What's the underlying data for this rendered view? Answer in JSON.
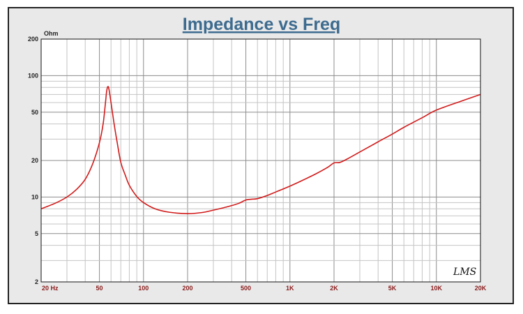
{
  "chart_data": {
    "type": "line",
    "title": "Impedance vs Freq",
    "ylabel": "Ohm",
    "xlabel": "",
    "x_scale": "log",
    "y_scale": "log",
    "xlim": [
      20,
      20000
    ],
    "ylim": [
      2,
      200
    ],
    "grid": true,
    "x_tick_labels": [
      {
        "value": 20,
        "label": "20 Hz"
      },
      {
        "value": 50,
        "label": "50"
      },
      {
        "value": 100,
        "label": "100"
      },
      {
        "value": 200,
        "label": "200"
      },
      {
        "value": 500,
        "label": "500"
      },
      {
        "value": 1000,
        "label": "1K"
      },
      {
        "value": 2000,
        "label": "2K"
      },
      {
        "value": 5000,
        "label": "5K"
      },
      {
        "value": 10000,
        "label": "10K"
      },
      {
        "value": 20000,
        "label": "20K"
      }
    ],
    "y_tick_labels": [
      {
        "value": 200,
        "label": "200"
      },
      {
        "value": 100,
        "label": "100"
      },
      {
        "value": 50,
        "label": "50"
      },
      {
        "value": 20,
        "label": "20"
      },
      {
        "value": 10,
        "label": "10"
      },
      {
        "value": 5,
        "label": "5"
      },
      {
        "value": 2,
        "label": "2"
      }
    ],
    "series": [
      {
        "color": "#d11a1a",
        "x": [
          20,
          25,
          30,
          35,
          40,
          45,
          50,
          53,
          55,
          56,
          57,
          58,
          60,
          63,
          66,
          70,
          75,
          80,
          90,
          100,
          120,
          150,
          200,
          250,
          300,
          350,
          400,
          450,
          500,
          550,
          600,
          700,
          800,
          1000,
          1200,
          1500,
          1800,
          2000,
          2200,
          2500,
          3000,
          4000,
          5000,
          6000,
          8000,
          10000,
          15000,
          20000
        ],
        "y": [
          8,
          8.9,
          10,
          11.6,
          14,
          18.8,
          28,
          40,
          60,
          74,
          81,
          78,
          60,
          40,
          28.5,
          19.3,
          15.2,
          12.5,
          10.1,
          9,
          8,
          7.5,
          7.3,
          7.45,
          7.8,
          8.15,
          8.5,
          8.9,
          9.45,
          9.6,
          9.7,
          10.3,
          11,
          12.3,
          13.6,
          15.5,
          17.5,
          19.1,
          19.3,
          20.8,
          23.5,
          28.5,
          33,
          37.5,
          45,
          52,
          62,
          70
        ]
      }
    ],
    "signature": "LMS"
  }
}
